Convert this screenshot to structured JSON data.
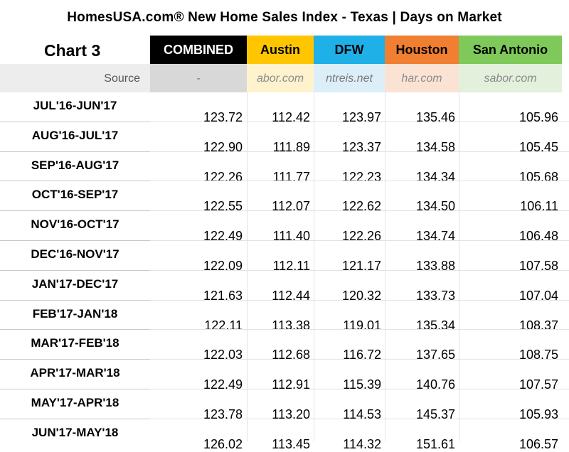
{
  "title": "HomesUSA.com® New Home Sales Index - Texas  |  Days on Market",
  "chart_label": "Chart 3",
  "header": {
    "combined": "COMBINED",
    "austin": "Austin",
    "dfw": "DFW",
    "houston": "Houston",
    "san_antonio": "San Antonio"
  },
  "source_row": {
    "label": "Source",
    "combined": "-",
    "austin": "abor.com",
    "dfw": "ntreis.net",
    "houston": "har.com",
    "san_antonio": "sabor.com"
  },
  "colors": {
    "combined": "#000000",
    "austin": "#ffc600",
    "dfw": "#1fb0e8",
    "houston": "#f07f31",
    "san_antonio": "#7ec95a"
  },
  "chart_data": {
    "type": "table",
    "columns": [
      "COMBINED",
      "Austin",
      "DFW",
      "Houston",
      "San Antonio"
    ],
    "rows": [
      {
        "period": "JUL'16-JUN'17",
        "values": [
          "123.72",
          "112.42",
          "123.97",
          "135.46",
          "105.96"
        ]
      },
      {
        "period": "AUG'16-JUL'17",
        "values": [
          "122.90",
          "111.89",
          "123.37",
          "134.58",
          "105.45"
        ]
      },
      {
        "period": "SEP'16-AUG'17",
        "values": [
          "122.26",
          "111.77",
          "122.23",
          "134.34",
          "105.68"
        ]
      },
      {
        "period": "OCT'16-SEP'17",
        "values": [
          "122.55",
          "112.07",
          "122.62",
          "134.50",
          "106.11"
        ]
      },
      {
        "period": "NOV'16-OCT'17",
        "values": [
          "122.49",
          "111.40",
          "122.26",
          "134.74",
          "106.48"
        ]
      },
      {
        "period": "DEC'16-NOV'17",
        "values": [
          "122.09",
          "112.11",
          "121.17",
          "133.88",
          "107.58"
        ]
      },
      {
        "period": "JAN'17-DEC'17",
        "values": [
          "121.63",
          "112.44",
          "120.32",
          "133.73",
          "107.04"
        ]
      },
      {
        "period": "FEB'17-JAN'18",
        "values": [
          "122.11",
          "113.38",
          "119.01",
          "135.34",
          "108.37"
        ]
      },
      {
        "period": "MAR'17-FEB'18",
        "values": [
          "122.03",
          "112.68",
          "116.72",
          "137.65",
          "108.75"
        ]
      },
      {
        "period": "APR'17-MAR'18",
        "values": [
          "122.49",
          "112.91",
          "115.39",
          "140.76",
          "107.57"
        ]
      },
      {
        "period": "MAY'17-APR'18",
        "values": [
          "123.78",
          "113.20",
          "114.53",
          "145.37",
          "105.93"
        ]
      },
      {
        "period": "JUN'17-MAY'18",
        "values": [
          "126.02",
          "113.45",
          "114.32",
          "151.61",
          "106.57"
        ]
      }
    ]
  }
}
